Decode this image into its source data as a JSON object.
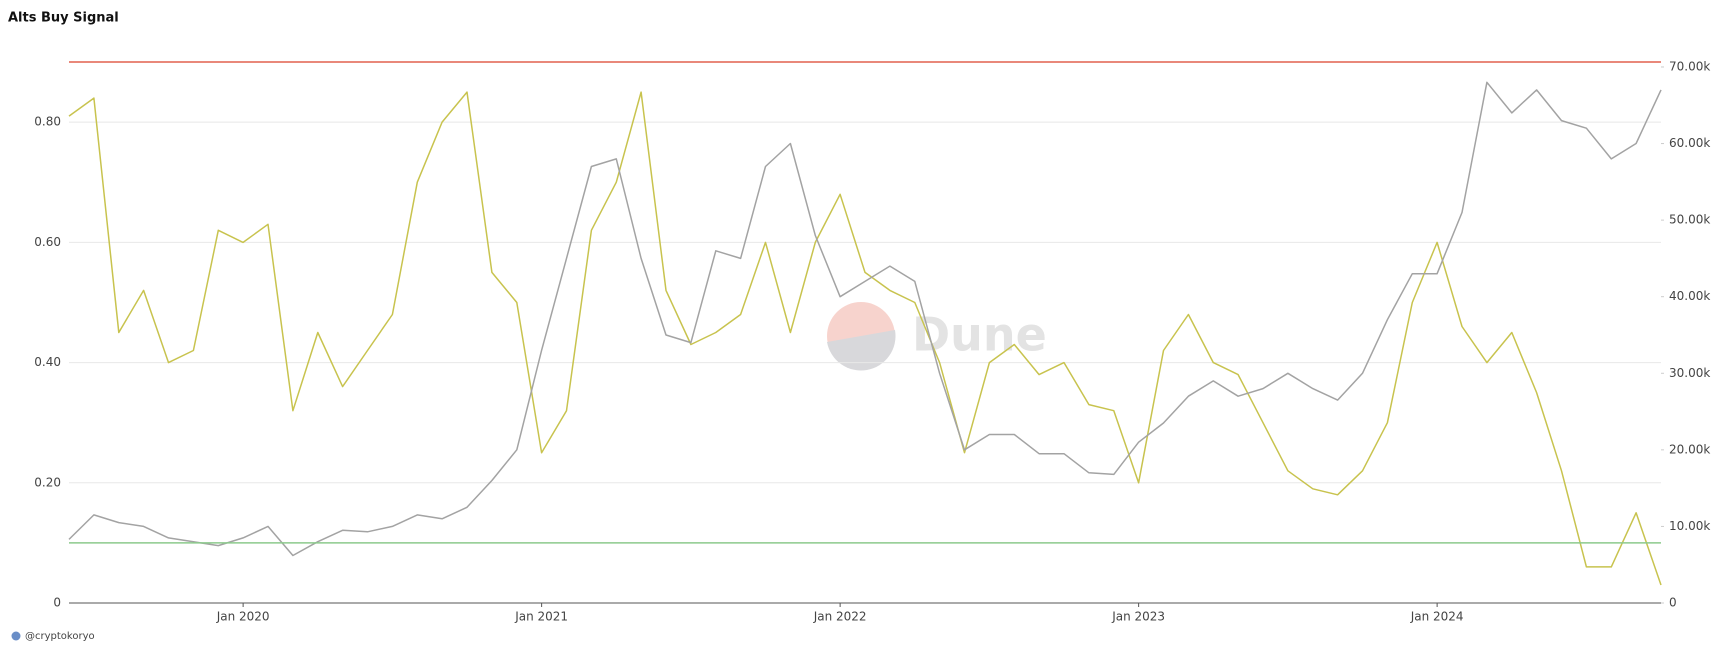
{
  "chart_data": {
    "type": "line",
    "title": "Alts Buy Signal",
    "footer": "@cryptokoryo",
    "watermark": "Dune",
    "x": [
      "2019-06",
      "2019-07",
      "2019-08",
      "2019-09",
      "2019-10",
      "2019-11",
      "2019-12",
      "2020-01",
      "2020-02",
      "2020-03",
      "2020-04",
      "2020-05",
      "2020-06",
      "2020-07",
      "2020-08",
      "2020-09",
      "2020-10",
      "2020-11",
      "2020-12",
      "2021-01",
      "2021-02",
      "2021-03",
      "2021-04",
      "2021-05",
      "2021-06",
      "2021-07",
      "2021-08",
      "2021-09",
      "2021-10",
      "2021-11",
      "2021-12",
      "2022-01",
      "2022-02",
      "2022-03",
      "2022-04",
      "2022-05",
      "2022-06",
      "2022-07",
      "2022-08",
      "2022-09",
      "2022-10",
      "2022-11",
      "2022-12",
      "2023-01",
      "2023-02",
      "2023-03",
      "2023-04",
      "2023-05",
      "2023-06",
      "2023-07",
      "2023-08",
      "2023-09",
      "2023-10",
      "2023-11",
      "2023-12",
      "2024-01",
      "2024-02",
      "2024-03",
      "2024-04",
      "2024-05",
      "2024-06",
      "2024-07",
      "2024-08",
      "2024-09",
      "2024-10"
    ],
    "series": [
      {
        "color": "#c8c34e",
        "axis": "y",
        "values": [
          0.81,
          0.84,
          0.45,
          0.52,
          0.4,
          0.42,
          0.62,
          0.6,
          0.63,
          0.32,
          0.45,
          0.36,
          0.42,
          0.48,
          0.7,
          0.8,
          0.85,
          0.55,
          0.5,
          0.25,
          0.32,
          0.62,
          0.7,
          0.85,
          0.52,
          0.43,
          0.45,
          0.48,
          0.6,
          0.45,
          0.6,
          0.68,
          0.55,
          0.52,
          0.5,
          0.4,
          0.25,
          0.4,
          0.43,
          0.38,
          0.4,
          0.33,
          0.32,
          0.2,
          0.42,
          0.48,
          0.4,
          0.38,
          0.3,
          0.22,
          0.19,
          0.18,
          0.22,
          0.3,
          0.5,
          0.6,
          0.46,
          0.4,
          0.45,
          0.35,
          0.22,
          0.06,
          0.06,
          0.15,
          0.03
        ]
      },
      {
        "color": "#a3a3a3",
        "axis": "y2",
        "values": [
          8300,
          11500,
          10500,
          10000,
          8500,
          8000,
          7500,
          8500,
          10000,
          6200,
          8000,
          9500,
          9300,
          10000,
          11500,
          11000,
          12500,
          16000,
          20000,
          33000,
          45000,
          57000,
          58000,
          45000,
          35000,
          34000,
          46000,
          45000,
          57000,
          60000,
          48000,
          40000,
          42000,
          44000,
          42000,
          30000,
          20000,
          22000,
          22000,
          19500,
          19500,
          17000,
          16800,
          21000,
          23500,
          27000,
          29000,
          27000,
          28000,
          30000,
          28000,
          26500,
          30000,
          37000,
          43000,
          43000,
          51000,
          68000,
          64000,
          67000,
          63000,
          62000,
          58000,
          60000,
          67000
        ]
      }
    ],
    "hlines": [
      {
        "value": 0.9,
        "color": "#e2604f"
      },
      {
        "value": 0.1,
        "color": "#8cc98c"
      }
    ],
    "ylim": [
      0,
      0.93
    ],
    "yticks": [
      0,
      {
        "value": 0.2,
        "label": "0.20"
      },
      {
        "value": 0.4,
        "label": "0.40"
      },
      {
        "value": 0.6,
        "label": "0.60"
      },
      {
        "value": 0.8,
        "label": "0.80"
      }
    ],
    "y2lim": [
      0,
      73000
    ],
    "y2ticks": [
      0,
      {
        "value": 10000,
        "label": "10.00k"
      },
      {
        "value": 20000,
        "label": "20.00k"
      },
      {
        "value": 30000,
        "label": "30.00k"
      },
      {
        "value": 40000,
        "label": "40.00k"
      },
      {
        "value": 50000,
        "label": "50.00k"
      },
      {
        "value": 60000,
        "label": "60.00k"
      },
      {
        "value": 70000,
        "label": "70.00k"
      }
    ],
    "xticks": [
      {
        "value": "2020-01",
        "label": "Jan 2020"
      },
      {
        "value": "2021-01",
        "label": "Jan 2021"
      },
      {
        "value": "2022-01",
        "label": "Jan 2022"
      },
      {
        "value": "2023-01",
        "label": "Jan 2023"
      },
      {
        "value": "2024-01",
        "label": "Jan 2024"
      }
    ],
    "grid": true
  }
}
